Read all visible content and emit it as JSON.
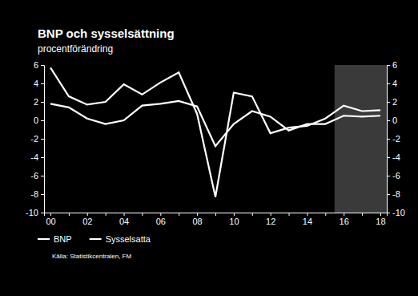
{
  "chart_data": {
    "type": "line",
    "title": "BNP och sysselsättning",
    "subtitle": "procentförändring",
    "source": "Källa: Statistikcentralen, FM",
    "categories": [
      "00",
      null,
      "02",
      null,
      "04",
      null,
      "06",
      null,
      "08",
      null,
      "10",
      null,
      "12",
      null,
      "14",
      null,
      "16",
      null,
      "18"
    ],
    "series": [
      {
        "name": "BNP",
        "color": "#ffffff",
        "values": [
          5.7,
          2.6,
          1.7,
          2.0,
          3.9,
          2.8,
          4.1,
          5.2,
          0.7,
          -8.3,
          3.0,
          2.6,
          -1.4,
          -0.8,
          -0.6,
          0.2,
          1.6,
          1.0,
          1.1
        ]
      },
      {
        "name": "Sysselsatta",
        "color": "#ffffff",
        "values": [
          1.8,
          1.4,
          0.2,
          -0.4,
          0.0,
          1.6,
          1.8,
          2.1,
          1.5,
          -2.8,
          -0.4,
          1.0,
          0.4,
          -1.1,
          -0.4,
          -0.4,
          0.5,
          0.4,
          0.5
        ]
      }
    ],
    "ylim": [
      -10,
      6
    ],
    "yticks": [
      -10,
      -8,
      -6,
      -4,
      -2,
      0,
      2,
      4,
      6
    ],
    "y2lim": [
      -10,
      6
    ],
    "y2ticks": [
      -10,
      -8,
      -6,
      -4,
      -2,
      0,
      2,
      4,
      6
    ],
    "legend": "bottom-left"
  }
}
